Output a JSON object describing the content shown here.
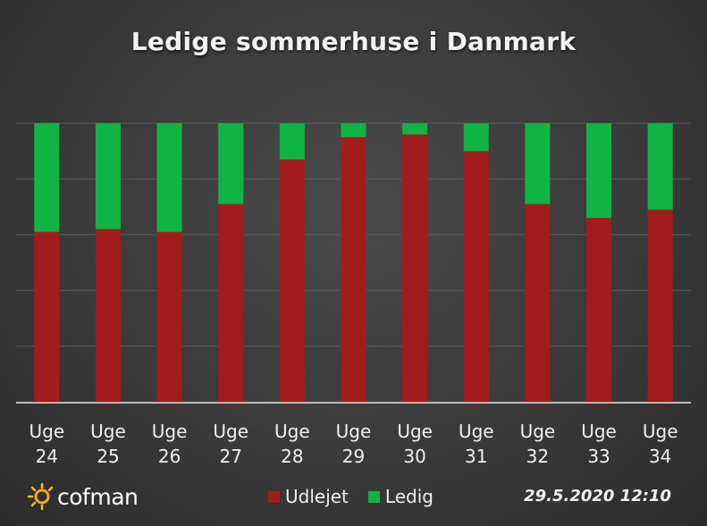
{
  "chart_data": {
    "type": "bar",
    "stacked": true,
    "title": "Ledige sommerhuse i Danmark",
    "categories": [
      "Uge 24",
      "Uge 25",
      "Uge 26",
      "Uge 27",
      "Uge 28",
      "Uge 29",
      "Uge 30",
      "Uge 31",
      "Uge 32",
      "Uge 33",
      "Uge 34"
    ],
    "series": [
      {
        "name": "Udlejet",
        "color": "#a31c1c",
        "values": [
          61,
          62,
          61,
          71,
          87,
          95,
          96,
          90,
          71,
          66,
          69
        ]
      },
      {
        "name": "Ledig",
        "color": "#10b444",
        "values": [
          39,
          38,
          39,
          29,
          13,
          5,
          4,
          10,
          29,
          34,
          31
        ]
      }
    ],
    "ylim": [
      0,
      100
    ],
    "grid": true,
    "legend_position": "bottom"
  },
  "brand": {
    "name": "cofman"
  },
  "timestamp": "29.5.2020 12:10"
}
